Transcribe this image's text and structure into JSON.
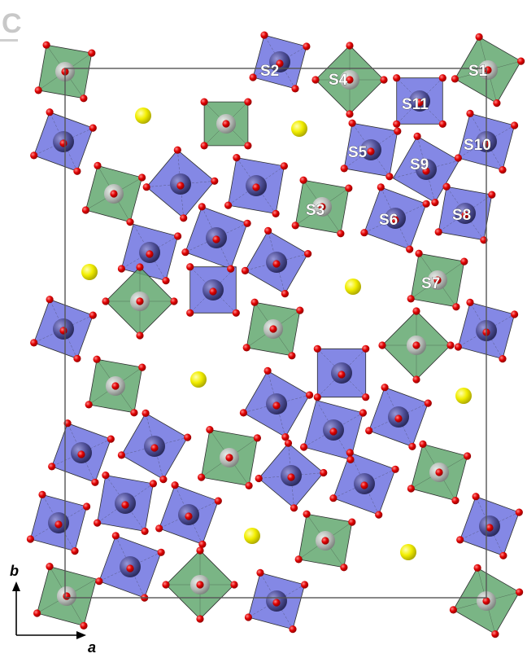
{
  "header_fragment": "C",
  "site_labels": {
    "s1": "S1",
    "s2": "S2",
    "s3": "S3",
    "s4": "S4",
    "s5": "S5",
    "s6": "S6",
    "s7": "S7",
    "s8": "S8",
    "s9": "S9",
    "s10": "S10",
    "s11": "S11"
  },
  "axes": {
    "b": "b",
    "a": "a"
  },
  "colors": {
    "octahedron": "#6e73e0",
    "tetrahedron": "#63a870",
    "oxygen": "#e00000",
    "cation": "#f2ee00",
    "cell": "#555555"
  }
}
